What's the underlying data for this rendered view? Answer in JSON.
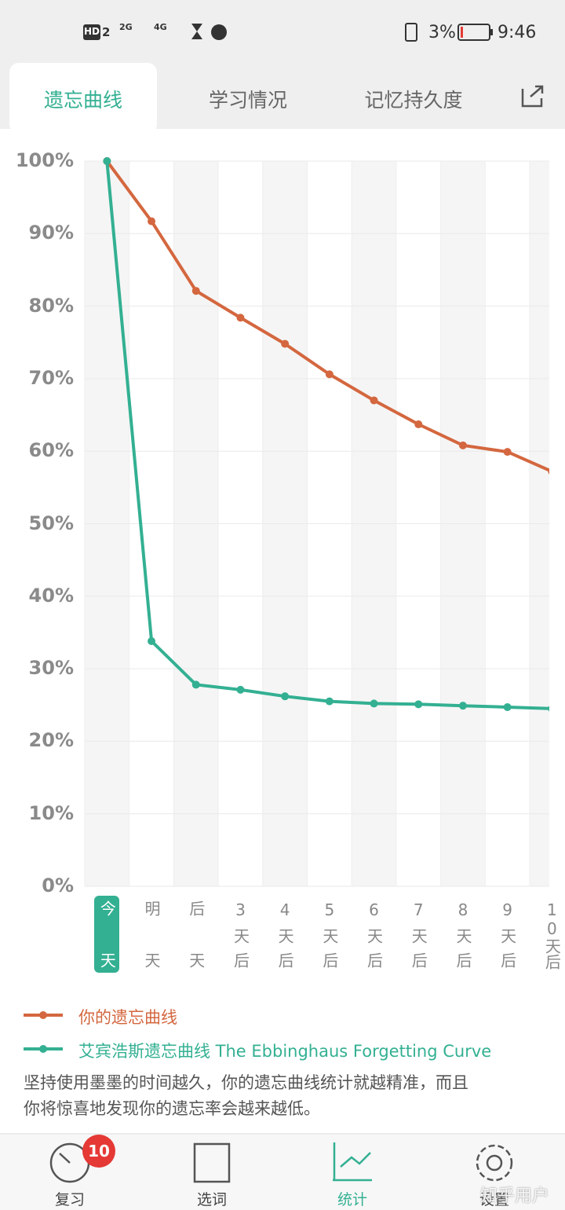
{
  "status_bar": {
    "hd": "HD",
    "sim": "2",
    "signal_1": "2G",
    "signal_2": "4G",
    "battery": "3%",
    "time": "9:46"
  },
  "tabs": [
    "遗忘曲线",
    "学习情况",
    "记忆持久度"
  ],
  "chart_data": {
    "type": "line",
    "categories": [
      "今天",
      "明天",
      "后天",
      "3天后",
      "4天后",
      "5天后",
      "6天后",
      "7天后",
      "8天后",
      "9天后",
      "10天后"
    ],
    "series": [
      {
        "name": "你的遗忘曲线",
        "color": "#d4673f",
        "values": [
          100,
          91.7,
          82.1,
          78.4,
          74.8,
          70.6,
          67.0,
          63.7,
          60.8,
          59.9,
          57.2
        ]
      },
      {
        "name": "艾宾浩斯遗忘曲线 The Ebbinghaus Forgetting Curve",
        "color": "#33b092",
        "values": [
          100,
          33.8,
          27.8,
          27.1,
          26.2,
          25.5,
          25.2,
          25.1,
          24.9,
          24.7,
          24.5
        ]
      }
    ],
    "ylim": [
      0,
      100
    ],
    "yticks": [
      {
        "value": 0,
        "label": "0%"
      },
      {
        "value": 10,
        "label": "10%"
      },
      {
        "value": 20,
        "label": "20%"
      },
      {
        "value": 30,
        "label": "30%"
      },
      {
        "value": 40,
        "label": "40%"
      },
      {
        "value": 50,
        "label": "50%"
      },
      {
        "value": 60,
        "label": "60%"
      },
      {
        "value": 70,
        "label": "70%"
      },
      {
        "value": 80,
        "label": "80%"
      },
      {
        "value": 90,
        "label": "90%"
      },
      {
        "value": 100,
        "label": "100%"
      }
    ],
    "grid": true
  },
  "note": [
    "坚持使用墨墨的时间越久，你的遗忘曲线统计就越精准，而且",
    "你将惊喜地发现你的遗忘率会越来越低。"
  ],
  "nav": [
    {
      "label": "复习",
      "badge": "10"
    },
    {
      "label": "选词"
    },
    {
      "label": "统计"
    },
    {
      "label": "设置"
    }
  ],
  "watermark": "知乎用户"
}
